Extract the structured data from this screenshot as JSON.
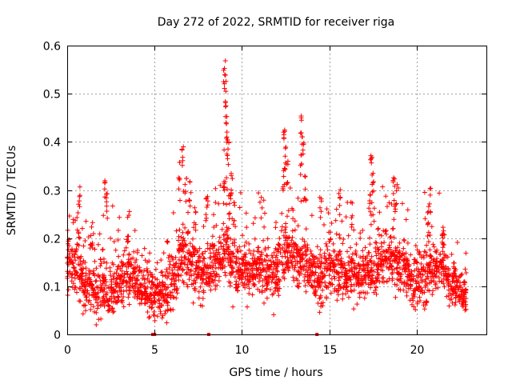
{
  "chart_data": {
    "type": "scatter",
    "title": "Day 272 of 2022, SRMTID for receiver riga",
    "xlabel": "GPS time / hours",
    "ylabel": "SRMTID / TECUs",
    "xlim": [
      0,
      24
    ],
    "ylim": [
      0,
      0.6
    ],
    "xticks": [
      0,
      5,
      10,
      15,
      20
    ],
    "xtick_labels": [
      "0",
      "5",
      "10",
      "15",
      "20"
    ],
    "yticks": [
      0,
      0.1,
      0.2,
      0.3,
      0.4,
      0.5,
      0.6
    ],
    "ytick_labels": [
      "0",
      "0.1",
      "0.2",
      "0.3",
      "0.4",
      "0.5",
      "0.6"
    ],
    "grid": true,
    "marker": "+",
    "color": "#ff0000",
    "series": [
      {
        "name": "SRMTID",
        "profile": [
          [
            0.0,
            0.15,
            0.05
          ],
          [
            0.3,
            0.15,
            0.05
          ],
          [
            0.6,
            0.14,
            0.06
          ],
          [
            0.9,
            0.11,
            0.05
          ],
          [
            1.2,
            0.1,
            0.04
          ],
          [
            1.5,
            0.1,
            0.05
          ],
          [
            1.8,
            0.09,
            0.05
          ],
          [
            2.1,
            0.1,
            0.06
          ],
          [
            2.4,
            0.09,
            0.05
          ],
          [
            2.7,
            0.1,
            0.05
          ],
          [
            3.0,
            0.1,
            0.05
          ],
          [
            3.3,
            0.12,
            0.06
          ],
          [
            3.6,
            0.12,
            0.05
          ],
          [
            3.9,
            0.11,
            0.05
          ],
          [
            4.2,
            0.1,
            0.04
          ],
          [
            4.5,
            0.09,
            0.04
          ],
          [
            4.8,
            0.08,
            0.04
          ],
          [
            5.1,
            0.08,
            0.04
          ],
          [
            5.4,
            0.08,
            0.04
          ],
          [
            5.7,
            0.09,
            0.05
          ],
          [
            6.0,
            0.11,
            0.05
          ],
          [
            6.3,
            0.14,
            0.05
          ],
          [
            6.6,
            0.16,
            0.06
          ],
          [
            6.9,
            0.16,
            0.06
          ],
          [
            7.2,
            0.15,
            0.06
          ],
          [
            7.5,
            0.13,
            0.05
          ],
          [
            7.8,
            0.13,
            0.05
          ],
          [
            8.1,
            0.14,
            0.05
          ],
          [
            8.4,
            0.15,
            0.05
          ],
          [
            8.7,
            0.16,
            0.05
          ],
          [
            9.0,
            0.18,
            0.06
          ],
          [
            9.3,
            0.17,
            0.06
          ],
          [
            9.6,
            0.15,
            0.06
          ],
          [
            9.9,
            0.14,
            0.05
          ],
          [
            10.2,
            0.14,
            0.05
          ],
          [
            10.5,
            0.13,
            0.05
          ],
          [
            10.8,
            0.13,
            0.05
          ],
          [
            11.1,
            0.14,
            0.05
          ],
          [
            11.4,
            0.13,
            0.05
          ],
          [
            11.7,
            0.12,
            0.05
          ],
          [
            12.0,
            0.14,
            0.05
          ],
          [
            12.3,
            0.16,
            0.06
          ],
          [
            12.6,
            0.17,
            0.06
          ],
          [
            12.9,
            0.16,
            0.05
          ],
          [
            13.2,
            0.15,
            0.05
          ],
          [
            13.5,
            0.15,
            0.05
          ],
          [
            13.8,
            0.14,
            0.05
          ],
          [
            14.1,
            0.13,
            0.05
          ],
          [
            14.4,
            0.12,
            0.05
          ],
          [
            14.7,
            0.12,
            0.05
          ],
          [
            15.0,
            0.14,
            0.05
          ],
          [
            15.3,
            0.14,
            0.05
          ],
          [
            15.6,
            0.13,
            0.05
          ],
          [
            15.9,
            0.12,
            0.05
          ],
          [
            16.2,
            0.13,
            0.05
          ],
          [
            16.5,
            0.13,
            0.05
          ],
          [
            16.8,
            0.12,
            0.04
          ],
          [
            17.1,
            0.13,
            0.05
          ],
          [
            17.4,
            0.14,
            0.05
          ],
          [
            17.7,
            0.14,
            0.05
          ],
          [
            18.0,
            0.15,
            0.05
          ],
          [
            18.3,
            0.16,
            0.05
          ],
          [
            18.6,
            0.16,
            0.05
          ],
          [
            18.9,
            0.15,
            0.05
          ],
          [
            19.2,
            0.14,
            0.05
          ],
          [
            19.5,
            0.12,
            0.05
          ],
          [
            19.8,
            0.11,
            0.05
          ],
          [
            20.1,
            0.11,
            0.05
          ],
          [
            20.4,
            0.12,
            0.05
          ],
          [
            20.7,
            0.13,
            0.05
          ],
          [
            21.0,
            0.14,
            0.05
          ],
          [
            21.3,
            0.14,
            0.05
          ],
          [
            21.6,
            0.15,
            0.05
          ],
          [
            21.9,
            0.11,
            0.04
          ],
          [
            22.2,
            0.1,
            0.04
          ],
          [
            22.5,
            0.09,
            0.03
          ],
          [
            22.8,
            0.08,
            0.03
          ]
        ],
        "spikes": [
          [
            0.7,
            0.32
          ],
          [
            0.6,
            0.26
          ],
          [
            2.2,
            0.34
          ],
          [
            2.3,
            0.3
          ],
          [
            1.4,
            0.24
          ],
          [
            3.5,
            0.25
          ],
          [
            6.4,
            0.36
          ],
          [
            6.6,
            0.39
          ],
          [
            6.8,
            0.33
          ],
          [
            7.0,
            0.32
          ],
          [
            7.3,
            0.26
          ],
          [
            8.0,
            0.29
          ],
          [
            9.0,
            0.58
          ],
          [
            9.05,
            0.53
          ],
          [
            9.1,
            0.49
          ],
          [
            9.15,
            0.43
          ],
          [
            9.2,
            0.4
          ],
          [
            9.0,
            0.33
          ],
          [
            9.4,
            0.34
          ],
          [
            9.3,
            0.3
          ],
          [
            9.6,
            0.28
          ],
          [
            12.4,
            0.43
          ],
          [
            12.5,
            0.4
          ],
          [
            12.6,
            0.37
          ],
          [
            12.4,
            0.35
          ],
          [
            13.4,
            0.47
          ],
          [
            13.5,
            0.43
          ],
          [
            13.4,
            0.38
          ],
          [
            13.6,
            0.33
          ],
          [
            15.6,
            0.32
          ],
          [
            17.4,
            0.38
          ],
          [
            17.5,
            0.34
          ],
          [
            17.3,
            0.3
          ],
          [
            18.7,
            0.33
          ],
          [
            18.8,
            0.31
          ],
          [
            20.8,
            0.31
          ],
          [
            20.7,
            0.27
          ],
          [
            21.5,
            0.23
          ],
          [
            14.5,
            0.29
          ],
          [
            16.3,
            0.28
          ]
        ],
        "zero_points": [
          4.9,
          5.0,
          8.1,
          14.3
        ]
      }
    ]
  }
}
